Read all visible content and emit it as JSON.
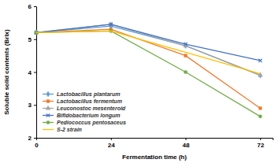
{
  "chart_data": {
    "type": "line",
    "x_label": "Fermentation time (h)",
    "y_label": "Soluble solid contents (Brix)",
    "x": [
      0,
      24,
      48,
      72
    ],
    "xlim": [
      0,
      76
    ],
    "xticks": [
      0,
      24,
      48,
      72
    ],
    "ylim": [
      2,
      6
    ],
    "yticks": [
      2,
      3,
      4,
      5,
      6
    ],
    "grid": false,
    "legend": "lower left",
    "series": [
      {
        "name": "Lactobacillus plantarum",
        "color": "#5b9bd5",
        "marker": "diamond",
        "values": [
          5.2,
          5.4,
          4.8,
          3.9
        ]
      },
      {
        "name": "Lactobacillus fermentum",
        "color": "#ed7d31",
        "marker": "square",
        "values": [
          5.2,
          5.3,
          4.5,
          2.9
        ]
      },
      {
        "name": "Leuconostoc mesenteroid",
        "color": "#a5a5a5",
        "marker": "triangle",
        "values": [
          5.2,
          5.45,
          4.8,
          3.9
        ]
      },
      {
        "name": "Bifidobacterium longum",
        "color": "#4472c4",
        "marker": "x",
        "values": [
          5.2,
          5.45,
          4.85,
          4.35
        ]
      },
      {
        "name": "Pediococcus pentosaceus",
        "color": "#70ad47",
        "marker": "circle",
        "values": [
          5.2,
          5.25,
          4.0,
          2.65
        ]
      },
      {
        "name": "S-2 strain",
        "color": "#ffc000",
        "marker": "none",
        "values": [
          5.2,
          5.25,
          4.6,
          3.95
        ]
      }
    ]
  }
}
